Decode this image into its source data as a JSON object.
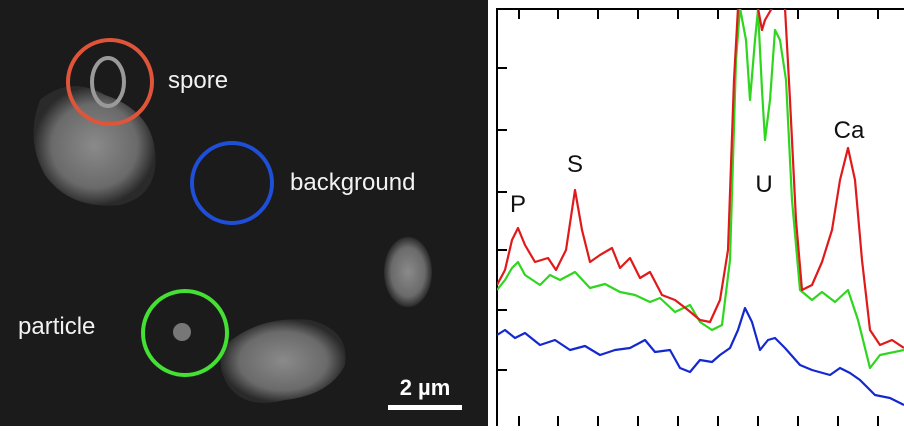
{
  "image": {
    "labels": [
      "spore",
      "background",
      "particle"
    ],
    "scale_bar": "2 µm"
  },
  "spectrum": {
    "peak_labels": [
      "P",
      "S",
      "U",
      "Ca"
    ]
  }
}
